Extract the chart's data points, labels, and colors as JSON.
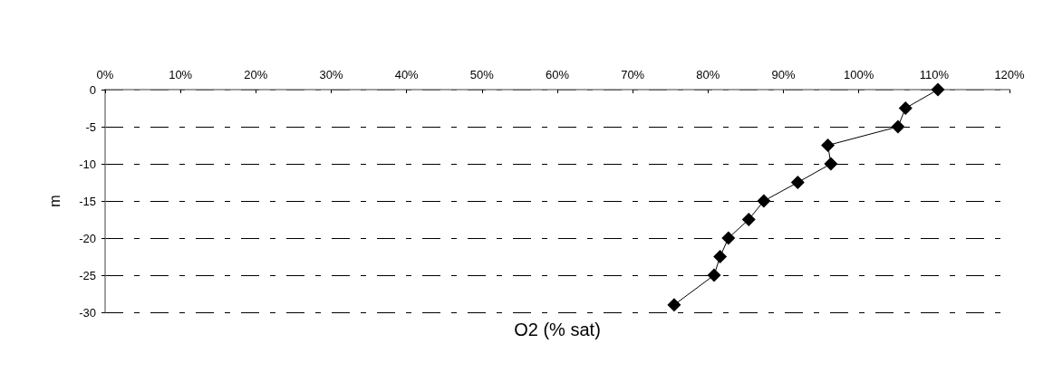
{
  "chart_data": {
    "type": "line",
    "xlabel": "O2 (% sat)",
    "ylabel": "m",
    "x": [
      110.5,
      106.2,
      105.2,
      95.9,
      96.3,
      91.9,
      87.4,
      85.4,
      82.7,
      81.6,
      80.8,
      75.5
    ],
    "series": [
      {
        "color": "#000000",
        "values": [
          0,
          -2.5,
          -5,
          -7.5,
          -10,
          -12.5,
          -15,
          -17.5,
          -20,
          -22.5,
          -25,
          -29
        ]
      }
    ],
    "xlim": [
      0,
      120
    ],
    "xticks": [
      {
        "value": 0,
        "label": "0%"
      },
      {
        "value": 10,
        "label": "10%"
      },
      {
        "value": 20,
        "label": "20%"
      },
      {
        "value": 30,
        "label": "30%"
      },
      {
        "value": 40,
        "label": "40%"
      },
      {
        "value": 50,
        "label": "50%"
      },
      {
        "value": 60,
        "label": "60%"
      },
      {
        "value": 70,
        "label": "70%"
      },
      {
        "value": 80,
        "label": "80%"
      },
      {
        "value": 90,
        "label": "90%"
      },
      {
        "value": 100,
        "label": "100%"
      },
      {
        "value": 110,
        "label": "110%"
      },
      {
        "value": 120,
        "label": "120%"
      }
    ],
    "ylim": [
      -30,
      0
    ],
    "yticks": [
      -30,
      -25,
      -20,
      -15,
      -10,
      -5,
      0
    ],
    "grid": "y",
    "marker": "diamond",
    "line_style": "solid"
  }
}
